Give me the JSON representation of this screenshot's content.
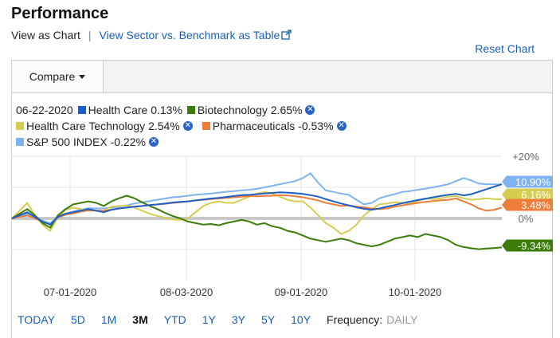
{
  "page": {
    "title": "Performance"
  },
  "subnav": {
    "current": "View as Chart",
    "separator": "|",
    "link": "View Sector vs. Benchmark as Table"
  },
  "reset_label": "Reset Chart",
  "compare_label": "Compare",
  "legend": {
    "date": "06-22-2020",
    "items": [
      {
        "name": "Health Care",
        "value": "0.13%",
        "color": "#1f5fc4"
      },
      {
        "name": "Biotechnology",
        "value": "2.65%",
        "color": "#3a7d0a"
      },
      {
        "name": "Health Care Technology",
        "value": "2.54%",
        "color": "#d4cd50"
      },
      {
        "name": "Pharmaceuticals",
        "value": "-0.53%",
        "color": "#ee7d3b"
      },
      {
        "name": "S&P 500 INDEX",
        "value": "-0.22%",
        "color": "#7fb3ef"
      }
    ],
    "remove_icon": "x-circle-icon"
  },
  "chart_data": {
    "type": "line",
    "x_ticks": [
      "07-01-2020",
      "08-03-2020",
      "09-01-2020",
      "10-01-2020"
    ],
    "y_ticks": [
      "+20%",
      "0%"
    ],
    "ylim": [
      -20,
      20
    ],
    "grid": true,
    "end_labels": [
      {
        "text": "10.90%",
        "value": 10.9,
        "color": "#7fb3ef"
      },
      {
        "text": "6.16%",
        "value": 6.16,
        "color": "#d4cd50"
      },
      {
        "text": "3.48%",
        "value": 3.48,
        "color": "#ee7d3b"
      },
      {
        "text": "-9.34%",
        "value": -9.34,
        "color": "#3a7d0a"
      }
    ],
    "series": [
      {
        "name": "Health Care",
        "color": "#1f5fc4",
        "values": [
          0,
          1,
          2,
          0.5,
          -1,
          -2,
          0.5,
          1.5,
          2,
          2.5,
          3,
          2.5,
          2,
          2.8,
          3.2,
          3.5,
          3.8,
          4,
          4.3,
          4.5,
          4.8,
          5.1,
          5.3,
          5.5,
          5.8,
          6.1,
          6.4,
          6.6,
          6.9,
          7.2,
          7.5,
          7.6,
          7.8,
          8,
          8.2,
          8.4,
          8.3,
          8.1,
          7.9,
          7.5,
          7,
          6.2,
          5.5,
          4.8,
          4.2,
          3.6,
          3.1,
          2.8,
          3.2,
          3.8,
          4.3,
          4.9,
          5.4,
          5.9,
          6.3,
          6.8,
          7.2,
          7.6,
          7.9,
          7.4,
          7.8,
          8.6,
          9.4,
          10.2,
          11
        ]
      },
      {
        "name": "Biotechnology",
        "color": "#3a7d0a",
        "values": [
          0,
          1.5,
          3,
          1,
          -1.5,
          -3,
          1,
          3,
          4.5,
          5,
          5.5,
          5,
          4,
          5.5,
          6.5,
          7.3,
          6.5,
          5.2,
          4,
          3,
          1.8,
          0.8,
          0,
          -1,
          -1.5,
          -2,
          -1.8,
          -2.2,
          -1.5,
          -1,
          -0.5,
          -1,
          -2,
          -1.5,
          -2.5,
          -3,
          -4,
          -4.5,
          -5.5,
          -6.5,
          -7,
          -7.5,
          -7,
          -6.5,
          -7,
          -8,
          -8.5,
          -9,
          -8.5,
          -7.5,
          -6.5,
          -6,
          -5.5,
          -6,
          -5,
          -5.5,
          -6,
          -7,
          -8.5,
          -9.2,
          -9.6,
          -9.9,
          -9.7,
          -9.5,
          -9.34
        ]
      },
      {
        "name": "Health Care Technology",
        "color": "#d4cd50",
        "values": [
          0,
          2.5,
          5,
          1,
          -2,
          -4,
          0.5,
          2.8,
          3.5,
          3,
          2.5,
          2.5,
          2.5,
          3.8,
          4,
          4.2,
          3.5,
          2.5,
          1.5,
          0.8,
          0.2,
          -0.3,
          -0.5,
          0,
          2,
          4,
          5,
          5.5,
          5,
          5,
          6,
          7,
          8,
          8.5,
          8,
          7,
          6,
          5.5,
          5.5,
          3.5,
          1,
          -1.5,
          -3,
          -5,
          -4,
          -2,
          1,
          3,
          4.5,
          4.8,
          5.2,
          5,
          4.8,
          5.6,
          6.5,
          6.2,
          6.5,
          7,
          7.2,
          6.5,
          6,
          6.2,
          6.5,
          6.2,
          6.16
        ]
      },
      {
        "name": "Pharmaceuticals",
        "color": "#ee7d3b",
        "values": [
          0,
          0.5,
          1,
          0,
          -1,
          -2,
          0.3,
          1.2,
          1.6,
          2.2,
          2.6,
          2.5,
          2.4,
          2.8,
          3.2,
          3.5,
          3.8,
          4,
          4.3,
          4.5,
          4.7,
          5,
          5.2,
          5.5,
          5.8,
          6,
          6.2,
          6.4,
          6.6,
          6.8,
          7,
          7.2,
          7.1,
          7.2,
          7.3,
          7.5,
          7.4,
          7.1,
          6.8,
          6.3,
          5.8,
          5,
          4.5,
          4,
          4.2,
          3.8,
          3.6,
          3.2,
          3,
          3.2,
          3.8,
          4.2,
          4.6,
          5,
          5.3,
          5.6,
          5.8,
          6,
          6.4,
          5.5,
          4.5,
          3.2,
          2.5,
          2.8,
          3.48
        ]
      },
      {
        "name": "S&P 500 INDEX",
        "color": "#7fb3ef",
        "values": [
          0,
          0.8,
          1.6,
          0.5,
          -0.8,
          -1.5,
          0.5,
          1.5,
          2.2,
          2.8,
          3.3,
          3.2,
          3.2,
          3.5,
          3.8,
          4.2,
          4.8,
          5.2,
          5.6,
          6,
          6.4,
          6.8,
          7,
          7.3,
          7.6,
          7.8,
          8,
          8.3,
          8.6,
          8.8,
          9,
          9.2,
          9.5,
          10,
          10.5,
          11,
          11.5,
          12,
          13,
          14.5,
          11.5,
          9,
          8.5,
          8,
          7.6,
          6,
          4.5,
          5,
          6.5,
          7.2,
          7.8,
          8.5,
          8.8,
          9.2,
          9.6,
          10,
          10.5,
          11,
          12,
          13,
          12.2,
          11.2,
          11,
          11,
          10.9
        ]
      }
    ]
  },
  "ranges": [
    "TODAY",
    "5D",
    "1M",
    "3M",
    "YTD",
    "1Y",
    "3Y",
    "5Y",
    "10Y"
  ],
  "active_range": "3M",
  "frequency": {
    "label": "Frequency:",
    "value": "DAILY"
  }
}
